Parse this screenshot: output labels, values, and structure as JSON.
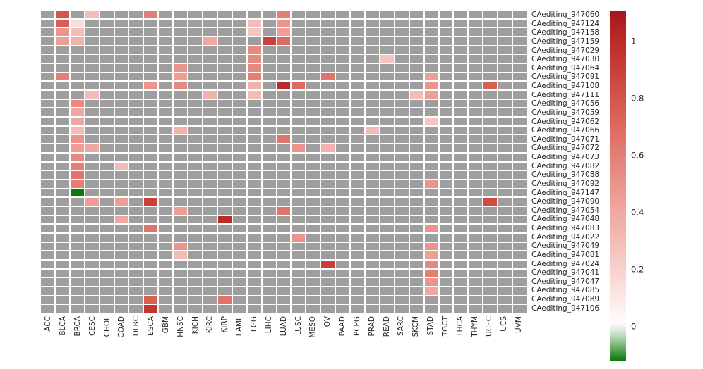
{
  "chart_data": {
    "type": "heatmap",
    "title": "",
    "na_color": "#9e9e9e",
    "grid": true,
    "legend_position": "right",
    "columns": [
      "ACC",
      "BLCA",
      "BRCA",
      "CESC",
      "CHOL",
      "COAD",
      "DLBC",
      "ESCA",
      "GBM",
      "HNSC",
      "KICH",
      "KIRC",
      "KIRP",
      "LAML",
      "LGG",
      "LIHC",
      "LUAD",
      "LUSC",
      "MESO",
      "OV",
      "PAAD",
      "PCPG",
      "PRAD",
      "READ",
      "SARC",
      "SKCM",
      "STAD",
      "TGCT",
      "THCA",
      "THYM",
      "UCEC",
      "UCS",
      "UVM"
    ],
    "rows": [
      "CAediting_947060",
      "CAediting_947124",
      "CAediting_947158",
      "CAediting_947159",
      "CAediting_947029",
      "CAediting_947030",
      "CAediting_947064",
      "CAediting_947091",
      "CAediting_947108",
      "CAediting_947111",
      "CAediting_947056",
      "CAediting_947059",
      "CAediting_947062",
      "CAediting_947066",
      "CAediting_947071",
      "CAediting_947072",
      "CAediting_947073",
      "CAediting_947082",
      "CAediting_947088",
      "CAediting_947092",
      "CAediting_947147",
      "CAediting_947090",
      "CAediting_947054",
      "CAediting_947048",
      "CAediting_947083",
      "CAediting_947022",
      "CAediting_947049",
      "CAediting_947081",
      "CAediting_947024",
      "CAediting_947041",
      "CAediting_947047",
      "CAediting_947085",
      "CAediting_947089",
      "CAediting_947106"
    ],
    "cells": [
      {
        "row": "CAediting_947060",
        "col": "BLCA",
        "value": 0.8
      },
      {
        "row": "CAediting_947060",
        "col": "CESC",
        "value": 0.3
      },
      {
        "row": "CAediting_947060",
        "col": "ESCA",
        "value": 0.6
      },
      {
        "row": "CAediting_947060",
        "col": "LUAD",
        "value": 0.6
      },
      {
        "row": "CAediting_947124",
        "col": "BLCA",
        "value": 0.75
      },
      {
        "row": "CAediting_947124",
        "col": "BRCA",
        "value": 0.15
      },
      {
        "row": "CAediting_947124",
        "col": "LGG",
        "value": 0.3
      },
      {
        "row": "CAediting_947124",
        "col": "LUAD",
        "value": 0.5
      },
      {
        "row": "CAediting_947158",
        "col": "BLCA",
        "value": 0.5
      },
      {
        "row": "CAediting_947158",
        "col": "BRCA",
        "value": 0.3
      },
      {
        "row": "CAediting_947158",
        "col": "LGG",
        "value": 0.25
      },
      {
        "row": "CAediting_947158",
        "col": "LUAD",
        "value": 0.45
      },
      {
        "row": "CAediting_947159",
        "col": "BLCA",
        "value": 0.45
      },
      {
        "row": "CAediting_947159",
        "col": "BRCA",
        "value": 0.35
      },
      {
        "row": "CAediting_947159",
        "col": "KIRC",
        "value": 0.4
      },
      {
        "row": "CAediting_947159",
        "col": "LIHC",
        "value": 0.9
      },
      {
        "row": "CAediting_947159",
        "col": "LUAD",
        "value": 0.7
      },
      {
        "row": "CAediting_947029",
        "col": "LGG",
        "value": 0.55
      },
      {
        "row": "CAediting_947030",
        "col": "LGG",
        "value": 0.55
      },
      {
        "row": "CAediting_947030",
        "col": "READ",
        "value": 0.25
      },
      {
        "row": "CAediting_947064",
        "col": "HNSC",
        "value": 0.5
      },
      {
        "row": "CAediting_947064",
        "col": "LGG",
        "value": 0.55
      },
      {
        "row": "CAediting_947091",
        "col": "BLCA",
        "value": 0.6
      },
      {
        "row": "CAediting_947091",
        "col": "HNSC",
        "value": 0.45
      },
      {
        "row": "CAediting_947091",
        "col": "LGG",
        "value": 0.6
      },
      {
        "row": "CAediting_947091",
        "col": "OV",
        "value": 0.65
      },
      {
        "row": "CAediting_947091",
        "col": "STAD",
        "value": 0.45
      },
      {
        "row": "CAediting_947108",
        "col": "ESCA",
        "value": 0.5
      },
      {
        "row": "CAediting_947108",
        "col": "HNSC",
        "value": 0.55
      },
      {
        "row": "CAediting_947108",
        "col": "LGG",
        "value": 0.35
      },
      {
        "row": "CAediting_947108",
        "col": "LUAD",
        "value": 1.0
      },
      {
        "row": "CAediting_947108",
        "col": "LUSC",
        "value": 0.7
      },
      {
        "row": "CAediting_947108",
        "col": "STAD",
        "value": 0.5
      },
      {
        "row": "CAediting_947108",
        "col": "UCEC",
        "value": 0.75
      },
      {
        "row": "CAediting_947111",
        "col": "CESC",
        "value": 0.3
      },
      {
        "row": "CAediting_947111",
        "col": "KIRC",
        "value": 0.35
      },
      {
        "row": "CAediting_947111",
        "col": "LGG",
        "value": 0.3
      },
      {
        "row": "CAediting_947111",
        "col": "SKCM",
        "value": 0.3
      },
      {
        "row": "CAediting_947111",
        "col": "STAD",
        "value": 0.45
      },
      {
        "row": "CAediting_947056",
        "col": "BRCA",
        "value": 0.55
      },
      {
        "row": "CAediting_947059",
        "col": "BRCA",
        "value": 0.4
      },
      {
        "row": "CAediting_947062",
        "col": "BRCA",
        "value": 0.4
      },
      {
        "row": "CAediting_947062",
        "col": "STAD",
        "value": 0.25
      },
      {
        "row": "CAediting_947066",
        "col": "BRCA",
        "value": 0.3
      },
      {
        "row": "CAediting_947066",
        "col": "HNSC",
        "value": 0.35
      },
      {
        "row": "CAediting_947066",
        "col": "PRAD",
        "value": 0.3
      },
      {
        "row": "CAediting_947071",
        "col": "BRCA",
        "value": 0.5
      },
      {
        "row": "CAediting_947071",
        "col": "LUAD",
        "value": 0.65
      },
      {
        "row": "CAediting_947072",
        "col": "BRCA",
        "value": 0.45
      },
      {
        "row": "CAediting_947072",
        "col": "CESC",
        "value": 0.4
      },
      {
        "row": "CAediting_947072",
        "col": "LUSC",
        "value": 0.5
      },
      {
        "row": "CAediting_947072",
        "col": "OV",
        "value": 0.35
      },
      {
        "row": "CAediting_947073",
        "col": "BRCA",
        "value": 0.55
      },
      {
        "row": "CAediting_947082",
        "col": "BRCA",
        "value": 0.6
      },
      {
        "row": "CAediting_947082",
        "col": "COAD",
        "value": 0.3
      },
      {
        "row": "CAediting_947088",
        "col": "BRCA",
        "value": 0.65
      },
      {
        "row": "CAediting_947092",
        "col": "BRCA",
        "value": 0.6
      },
      {
        "row": "CAediting_947092",
        "col": "STAD",
        "value": 0.5
      },
      {
        "row": "CAediting_947147",
        "col": "BRCA",
        "value": -0.12
      },
      {
        "row": "CAediting_947090",
        "col": "CESC",
        "value": 0.45
      },
      {
        "row": "CAediting_947090",
        "col": "COAD",
        "value": 0.45
      },
      {
        "row": "CAediting_947090",
        "col": "ESCA",
        "value": 0.9
      },
      {
        "row": "CAediting_947090",
        "col": "UCEC",
        "value": 0.85
      },
      {
        "row": "CAediting_947054",
        "col": "HNSC",
        "value": 0.45
      },
      {
        "row": "CAediting_947054",
        "col": "LUAD",
        "value": 0.65
      },
      {
        "row": "CAediting_947048",
        "col": "COAD",
        "value": 0.4
      },
      {
        "row": "CAediting_947048",
        "col": "KIRP",
        "value": 1.0
      },
      {
        "row": "CAediting_947083",
        "col": "ESCA",
        "value": 0.65
      },
      {
        "row": "CAediting_947083",
        "col": "STAD",
        "value": 0.5
      },
      {
        "row": "CAediting_947022",
        "col": "LUSC",
        "value": 0.5
      },
      {
        "row": "CAediting_947049",
        "col": "HNSC",
        "value": 0.5
      },
      {
        "row": "CAediting_947049",
        "col": "STAD",
        "value": 0.5
      },
      {
        "row": "CAediting_947081",
        "col": "HNSC",
        "value": 0.3
      },
      {
        "row": "CAediting_947081",
        "col": "STAD",
        "value": 0.45
      },
      {
        "row": "CAediting_947024",
        "col": "OV",
        "value": 0.9
      },
      {
        "row": "CAediting_947024",
        "col": "STAD",
        "value": 0.55
      },
      {
        "row": "CAediting_947041",
        "col": "STAD",
        "value": 0.6
      },
      {
        "row": "CAediting_947047",
        "col": "STAD",
        "value": 0.5
      },
      {
        "row": "CAediting_947085",
        "col": "STAD",
        "value": 0.4
      },
      {
        "row": "CAediting_947089",
        "col": "ESCA",
        "value": 0.75
      },
      {
        "row": "CAediting_947089",
        "col": "KIRP",
        "value": 0.65
      },
      {
        "row": "CAediting_947106",
        "col": "ESCA",
        "value": 0.95
      }
    ],
    "colorbar": {
      "vmax": 1.11,
      "vmin": -0.12,
      "ticks": [
        1,
        0.8,
        0.6,
        0.4,
        0.2,
        0
      ],
      "tick_labels": [
        "1",
        "0.8",
        "0.6",
        "0.4",
        "0.2",
        "0"
      ],
      "stops": [
        [
          -0.12,
          "#0b7a0b"
        ],
        [
          0.0,
          "#ffffff"
        ],
        [
          0.25,
          "#f5c6c1"
        ],
        [
          0.5,
          "#eb948c"
        ],
        [
          0.75,
          "#d95f55"
        ],
        [
          0.95,
          "#c23630"
        ],
        [
          1.11,
          "#a5161c"
        ]
      ]
    }
  }
}
